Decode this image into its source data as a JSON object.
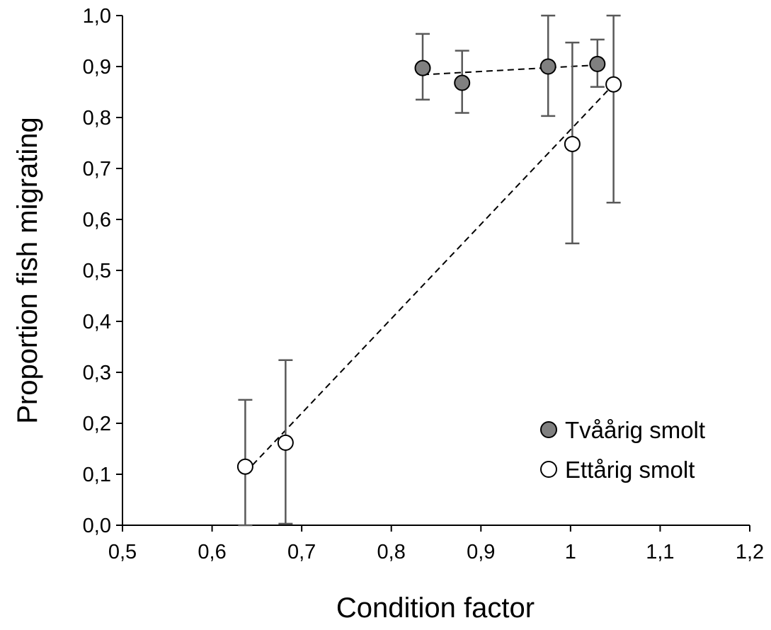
{
  "chart_data": {
    "type": "scatter",
    "xlabel": "Condition factor",
    "ylabel": "Proportion fish migrating",
    "xlim": [
      0.5,
      1.2
    ],
    "ylim": [
      0.0,
      1.0
    ],
    "x_ticks": [
      "0,5",
      "0,6",
      "0,7",
      "0,8",
      "0,9",
      "1",
      "1,1",
      "1,2"
    ],
    "y_ticks": [
      "0,0",
      "0,1",
      "0,2",
      "0,3",
      "0,4",
      "0,5",
      "0,6",
      "0,7",
      "0,8",
      "0,9",
      "1,0"
    ],
    "grid": false,
    "legend_position": "bottom-right",
    "series": [
      {
        "name": "Tvåårig smolt",
        "marker_color": "#808080",
        "points": [
          {
            "x": 0.835,
            "y": 0.897,
            "err_low": 0.835,
            "err_high": 0.964
          },
          {
            "x": 0.879,
            "y": 0.868,
            "err_low": 0.809,
            "err_high": 0.931
          },
          {
            "x": 0.975,
            "y": 0.9,
            "err_low": 0.803,
            "err_high": 1.0
          },
          {
            "x": 1.03,
            "y": 0.905,
            "err_low": 0.86,
            "err_high": 0.953
          }
        ],
        "trendline": [
          [
            0.835,
            0.884
          ],
          [
            1.03,
            0.903
          ]
        ]
      },
      {
        "name": "Ettårig smolt",
        "marker_color": "#ffffff",
        "points": [
          {
            "x": 0.637,
            "y": 0.115,
            "err_low": 0.0,
            "err_high": 0.246
          },
          {
            "x": 0.682,
            "y": 0.162,
            "err_low": 0.003,
            "err_high": 0.324
          },
          {
            "x": 1.002,
            "y": 0.748,
            "err_low": 0.553,
            "err_high": 0.947
          },
          {
            "x": 1.048,
            "y": 0.865,
            "err_low": 0.633,
            "err_high": 1.0
          }
        ],
        "trendline": [
          [
            0.637,
            0.103
          ],
          [
            1.048,
            0.865
          ]
        ]
      }
    ]
  }
}
